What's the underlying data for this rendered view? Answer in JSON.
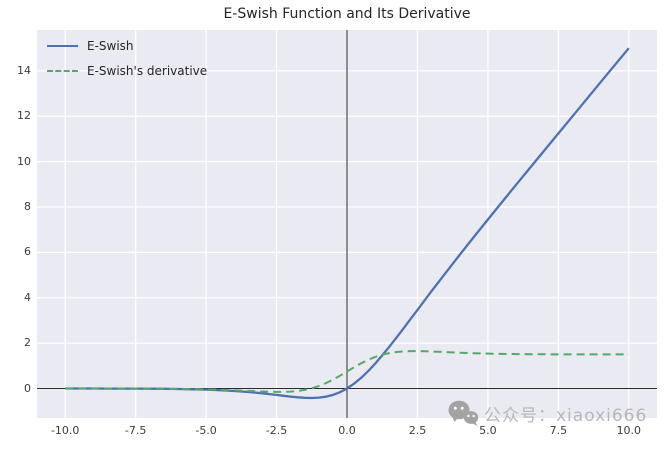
{
  "chart_data": {
    "type": "line",
    "title": "E-Swish Function and Its Derivative",
    "xlabel": "",
    "ylabel": "",
    "grid": true,
    "legend_position": "upper left",
    "xlim": [
      -11,
      11
    ],
    "ylim": [
      -1.3,
      15.8
    ],
    "x_ticks": [
      -10,
      -7.5,
      -5,
      -2.5,
      0,
      2.5,
      5,
      7.5,
      10
    ],
    "x_tick_labels": [
      "-10.0",
      "-7.5",
      "-5.0",
      "-2.5",
      "0.0",
      "2.5",
      "5.0",
      "7.5",
      "10.0"
    ],
    "y_ticks": [
      0,
      2,
      4,
      6,
      8,
      10,
      12,
      14
    ],
    "y_tick_labels": [
      "0",
      "2",
      "4",
      "6",
      "8",
      "10",
      "12",
      "14"
    ],
    "axis_lines": {
      "vline_x": 0,
      "hline_y": 0
    },
    "x": [
      -10,
      -9.5,
      -9,
      -8.5,
      -8,
      -7.5,
      -7,
      -6.5,
      -6,
      -5.5,
      -5,
      -4.5,
      -4,
      -3.5,
      -3,
      -2.75,
      -2.5,
      -2.25,
      -2,
      -1.75,
      -1.5,
      -1.25,
      -1,
      -0.75,
      -0.5,
      -0.25,
      0,
      0.25,
      0.5,
      0.75,
      1,
      1.25,
      1.5,
      1.75,
      2,
      2.25,
      2.5,
      2.75,
      3,
      3.5,
      4,
      4.5,
      5,
      5.5,
      6,
      6.5,
      7,
      7.5,
      8,
      8.5,
      9,
      9.5,
      10
    ],
    "series": [
      {
        "name": "E-Swish",
        "style": "solid",
        "color": "#4C72B0",
        "values": [
          -0.001,
          -0.001,
          -0.002,
          -0.003,
          -0.004,
          -0.006,
          -0.01,
          -0.015,
          -0.022,
          -0.034,
          -0.05,
          -0.074,
          -0.108,
          -0.154,
          -0.213,
          -0.248,
          -0.284,
          -0.322,
          -0.358,
          -0.389,
          -0.41,
          -0.418,
          -0.403,
          -0.361,
          -0.283,
          -0.164,
          0,
          0.211,
          0.467,
          0.764,
          1.097,
          1.457,
          1.84,
          2.236,
          2.642,
          3.053,
          3.466,
          3.877,
          4.287,
          5.096,
          5.892,
          6.676,
          7.45,
          8.216,
          8.978,
          9.735,
          10.49,
          11.244,
          11.996,
          12.747,
          13.498,
          14.249,
          14.999
        ]
      },
      {
        "name": "E-Swish's derivative",
        "style": "dashed",
        "color": "#55A868",
        "values": [
          -0.001,
          -0.001,
          -0.001,
          -0.002,
          -0.004,
          -0.005,
          -0.008,
          -0.012,
          -0.018,
          -0.027,
          -0.04,
          -0.057,
          -0.079,
          -0.105,
          -0.132,
          -0.143,
          -0.149,
          -0.148,
          -0.136,
          -0.109,
          -0.062,
          0.009,
          0.108,
          0.236,
          0.39,
          0.564,
          0.75,
          0.936,
          1.11,
          1.264,
          1.392,
          1.491,
          1.562,
          1.609,
          1.636,
          1.648,
          1.649,
          1.643,
          1.632,
          1.605,
          1.579,
          1.557,
          1.54,
          1.527,
          1.518,
          1.512,
          1.508,
          1.505,
          1.504,
          1.502,
          1.501,
          1.501,
          1.501
        ]
      }
    ],
    "colors": {
      "plot_bg": "#EAEAF2",
      "grid": "#FFFFFF",
      "axis_line": "#2b2b2b",
      "tick_text": "#3c3c3c",
      "watermark_text": "#b7b7b7",
      "watermark_icon": "#a3a3a3"
    }
  },
  "watermark": {
    "icon": "wechat-icon",
    "text": "公众号：xiaoxi666"
  }
}
